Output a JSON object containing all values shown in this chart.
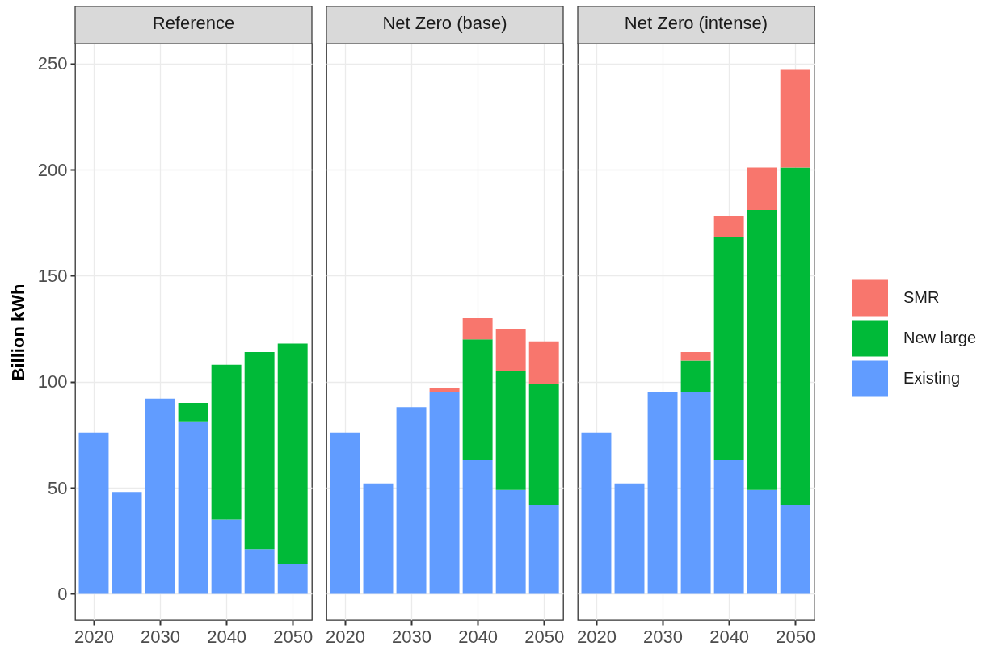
{
  "chart_data": [
    {
      "type": "bar",
      "title": "Reference",
      "ylabel": "Billion kWh",
      "x": [
        2020,
        2025,
        2030,
        2035,
        2040,
        2045,
        2050
      ],
      "xlim": [
        2017.2,
        2052.9
      ],
      "xticks": [
        2020,
        2030,
        2040,
        2050
      ],
      "ylim": [
        -12.4,
        259.4
      ],
      "yticks": [
        0,
        50,
        100,
        150,
        200,
        250
      ],
      "stacked": true,
      "grid": true,
      "legend": "right",
      "series": [
        {
          "name": "Existing",
          "color": "#619cff",
          "values": [
            76,
            48,
            92,
            81,
            35,
            21,
            14
          ]
        },
        {
          "name": "New large",
          "color": "#00ba38",
          "values": [
            null,
            null,
            null,
            9,
            73,
            93,
            104
          ]
        }
      ]
    },
    {
      "type": "bar",
      "title": "Net Zero (base)",
      "x": [
        2020,
        2025,
        2030,
        2035,
        2040,
        2045,
        2050
      ],
      "xlim": [
        2017.2,
        2052.9
      ],
      "xticks": [
        2020,
        2030,
        2040,
        2050
      ],
      "ylim": [
        -12.4,
        259.4
      ],
      "yticks": [
        0,
        50,
        100,
        150,
        200,
        250
      ],
      "stacked": true,
      "grid": true,
      "tick_labels": "x",
      "legend": "right",
      "series": [
        {
          "name": "Existing",
          "color": "#619cff",
          "values": [
            76,
            52,
            88,
            95,
            63,
            49,
            42
          ]
        },
        {
          "name": "New large",
          "color": "#00ba38",
          "values": [
            null,
            null,
            null,
            null,
            57,
            56,
            57
          ]
        },
        {
          "name": "SMR",
          "color": "#f8766d",
          "values": [
            null,
            null,
            null,
            2,
            10,
            20,
            20
          ]
        }
      ]
    },
    {
      "type": "bar",
      "title": "Net Zero (intense)",
      "x": [
        2020,
        2025,
        2030,
        2035,
        2040,
        2045,
        2050
      ],
      "xlim": [
        2017.2,
        2052.9
      ],
      "xticks": [
        2020,
        2030,
        2040,
        2050
      ],
      "ylim": [
        -12.4,
        259.4
      ],
      "yticks": [
        0,
        50,
        100,
        150,
        200,
        250
      ],
      "stacked": true,
      "grid": true,
      "tick_labels": "x",
      "legend": "right",
      "series": [
        {
          "name": "Existing",
          "color": "#619cff",
          "values": [
            76,
            52,
            95,
            95,
            63,
            49,
            42
          ]
        },
        {
          "name": "New large",
          "color": "#00ba38",
          "values": [
            null,
            null,
            null,
            15,
            105,
            132,
            159
          ]
        },
        {
          "name": "SMR",
          "color": "#f8766d",
          "values": [
            null,
            null,
            null,
            4,
            10,
            20,
            46
          ]
        }
      ]
    }
  ]
}
